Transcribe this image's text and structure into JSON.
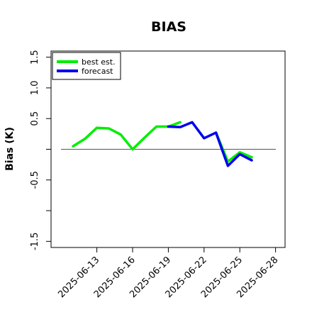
{
  "chart_data": {
    "type": "line",
    "title": "BIAS",
    "xlabel": "",
    "ylabel": "Bias (K)",
    "ylim": [
      -1.6,
      1.6
    ],
    "yticks": [
      -1.5,
      -1.0,
      -0.5,
      0.0,
      0.5,
      1.0,
      1.5
    ],
    "ytick_labels": [
      "-1.5",
      "",
      "-0.5",
      "",
      "0.5",
      "1.0",
      "1.5"
    ],
    "x_dates": [
      "2025-06-11",
      "2025-06-12",
      "2025-06-13",
      "2025-06-14",
      "2025-06-15",
      "2025-06-16",
      "2025-06-17",
      "2025-06-18",
      "2025-06-19",
      "2025-06-20",
      "2025-06-21",
      "2025-06-22",
      "2025-06-23",
      "2025-06-24",
      "2025-06-25",
      "2025-06-26",
      "2025-06-27"
    ],
    "x_ticks": [
      {
        "date": "2025-06-13",
        "label": "2025-06-13",
        "color": "#000000"
      },
      {
        "date": "2025-06-16",
        "label": "2025-06-16",
        "color": "#000000"
      },
      {
        "date": "2025-06-19",
        "label": "2025-06-19",
        "color": "#228b22"
      },
      {
        "date": "2025-06-22",
        "label": "2025-06-22",
        "color": "#000000"
      },
      {
        "date": "2025-06-25",
        "label": "2025-06-25",
        "color": "#000000"
      },
      {
        "date": "2025-06-28",
        "label": "2025-06-28",
        "color": "#000000"
      }
    ],
    "zero_line": 0,
    "legend": {
      "position": "top-left"
    },
    "series": [
      {
        "name": "best est.",
        "color": "#00ee00",
        "x": [
          "2025-06-11",
          "2025-06-12",
          "2025-06-13",
          "2025-06-14",
          "2025-06-15",
          "2025-06-16",
          "2025-06-17",
          "2025-06-18",
          "2025-06-19",
          "2025-06-20"
        ],
        "values": [
          0.05,
          0.17,
          0.35,
          0.34,
          0.24,
          0.0,
          0.19,
          0.37,
          0.37,
          0.44
        ]
      },
      {
        "name": "forecast",
        "color": "#0000ee",
        "x": [
          "2025-06-19",
          "2025-06-20",
          "2025-06-21",
          "2025-06-22",
          "2025-06-23",
          "2025-06-24",
          "2025-06-25",
          "2025-06-26"
        ],
        "values": [
          0.37,
          0.36,
          0.44,
          0.18,
          0.27,
          -0.27,
          -0.08,
          -0.18
        ]
      },
      {
        "name": "",
        "color": "#00ee00",
        "x": [
          "2025-06-23",
          "2025-06-24",
          "2025-06-25",
          "2025-06-26"
        ],
        "values": [
          0.27,
          -0.2,
          -0.05,
          -0.13
        ]
      }
    ]
  }
}
